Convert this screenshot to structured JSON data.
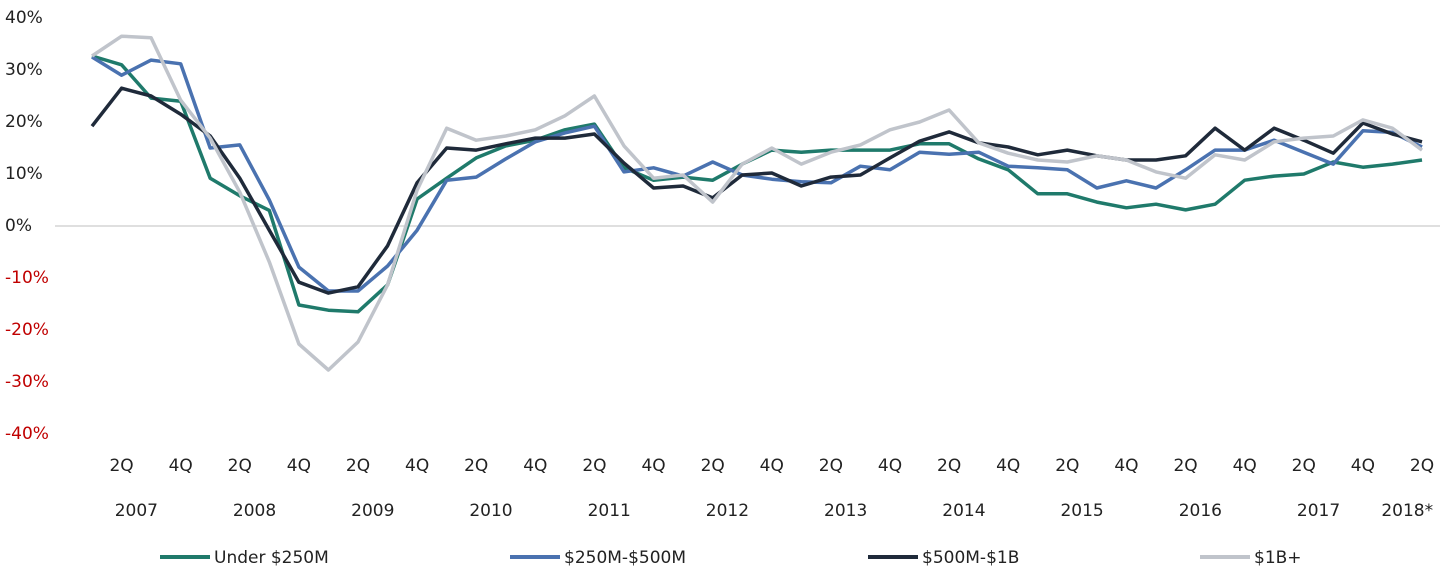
{
  "chart_data": {
    "type": "line",
    "categories": [
      null,
      "2Q",
      null,
      "4Q",
      null,
      "2Q",
      null,
      "4Q",
      null,
      "2Q",
      null,
      "4Q",
      null,
      "2Q",
      null,
      "4Q",
      null,
      "2Q",
      null,
      "4Q",
      null,
      "2Q",
      null,
      "4Q",
      null,
      "2Q",
      null,
      "4Q",
      null,
      "2Q",
      null,
      "4Q",
      null,
      "2Q",
      null,
      "4Q",
      null,
      "2Q",
      null,
      "4Q",
      null,
      "2Q",
      null,
      "4Q",
      null,
      "2Q"
    ],
    "years": [
      "2007",
      "2008",
      "2009",
      "2010",
      "2011",
      "2012",
      "2013",
      "2014",
      "2015",
      "2016",
      "2017",
      "2018*"
    ],
    "ylim": [
      -40,
      40
    ],
    "yticks": [
      {
        "value": -40,
        "label": "-40%"
      },
      {
        "value": -30,
        "label": "-30%"
      },
      {
        "value": -20,
        "label": "-20%"
      },
      {
        "value": -10,
        "label": "-10%"
      },
      {
        "value": 0,
        "label": "0%"
      },
      {
        "value": 10,
        "label": "10%"
      },
      {
        "value": 20,
        "label": "20%"
      },
      {
        "value": 30,
        "label": "30%"
      },
      {
        "value": 40,
        "label": "40%"
      }
    ],
    "negative_tick_color": "#c00000",
    "zero_line": true,
    "grid": false,
    "legend_position": "bottom",
    "series": [
      {
        "name": "Under $250M",
        "color": "#1f7a6b",
        "values": [
          32.7,
          31,
          24.6,
          24,
          9.2,
          5.8,
          3,
          -15.2,
          -16.2,
          -16.5,
          -11.3,
          5.2,
          9.2,
          13.1,
          15.4,
          16.5,
          18.5,
          19.6,
          11.2,
          8.8,
          9.4,
          8.8,
          11.9,
          14.6,
          14.2,
          14.6,
          14.6,
          14.6,
          15.8,
          15.8,
          12.9,
          10.8,
          6.2,
          6.2,
          4.6,
          3.5,
          4.2,
          3.1,
          4.2,
          8.8,
          9.6,
          10,
          12.3,
          11.3,
          11.9,
          12.7
        ]
      },
      {
        "name": "$250M-$500M",
        "color": "#4a72b0",
        "values": [
          32.5,
          29,
          31.9,
          31.2,
          15,
          15.6,
          5,
          -7.9,
          -12.5,
          -12.5,
          -7.7,
          -0.8,
          8.8,
          9.4,
          12.9,
          16.2,
          17.9,
          19.2,
          10.4,
          11.2,
          9.6,
          12.3,
          9.8,
          9,
          8.5,
          8.3,
          11.5,
          10.8,
          14.2,
          13.8,
          14.2,
          11.5,
          11.2,
          10.8,
          7.3,
          8.7,
          7.3,
          10.8,
          14.6,
          14.6,
          16.5,
          14.2,
          11.9,
          18.3,
          18,
          15.2
        ]
      },
      {
        "name": "$500M-$1B",
        "color": "#1f2a3a",
        "values": [
          19.2,
          26.5,
          25,
          21.5,
          17.3,
          9.2,
          -0.8,
          -10.8,
          -12.9,
          -11.7,
          -3.8,
          8.3,
          15,
          14.6,
          15.8,
          16.9,
          16.9,
          17.7,
          12.1,
          7.3,
          7.7,
          5.4,
          9.8,
          10.2,
          7.7,
          9.4,
          9.8,
          13.1,
          16.3,
          18.1,
          16,
          15.2,
          13.7,
          14.6,
          13.5,
          12.7,
          12.7,
          13.5,
          18.8,
          14.6,
          18.8,
          16.5,
          14,
          19.8,
          17.7,
          16.2
        ]
      },
      {
        "name": "$1B+",
        "color": "#c0c4cb",
        "values": [
          32.7,
          36.5,
          36.2,
          24.2,
          16.9,
          6.5,
          -6.9,
          -22.7,
          -27.7,
          -22.3,
          -11.3,
          6.9,
          18.8,
          16.5,
          17.3,
          18.5,
          21.2,
          25,
          15.4,
          9.2,
          9.8,
          4.6,
          11.9,
          15,
          11.9,
          14.2,
          15.6,
          18.5,
          20,
          22.3,
          16,
          14,
          12.7,
          12.3,
          13.5,
          12.7,
          10.4,
          9.2,
          13.7,
          12.7,
          16.2,
          16.9,
          17.3,
          20.4,
          18.8,
          14.6
        ]
      }
    ]
  }
}
